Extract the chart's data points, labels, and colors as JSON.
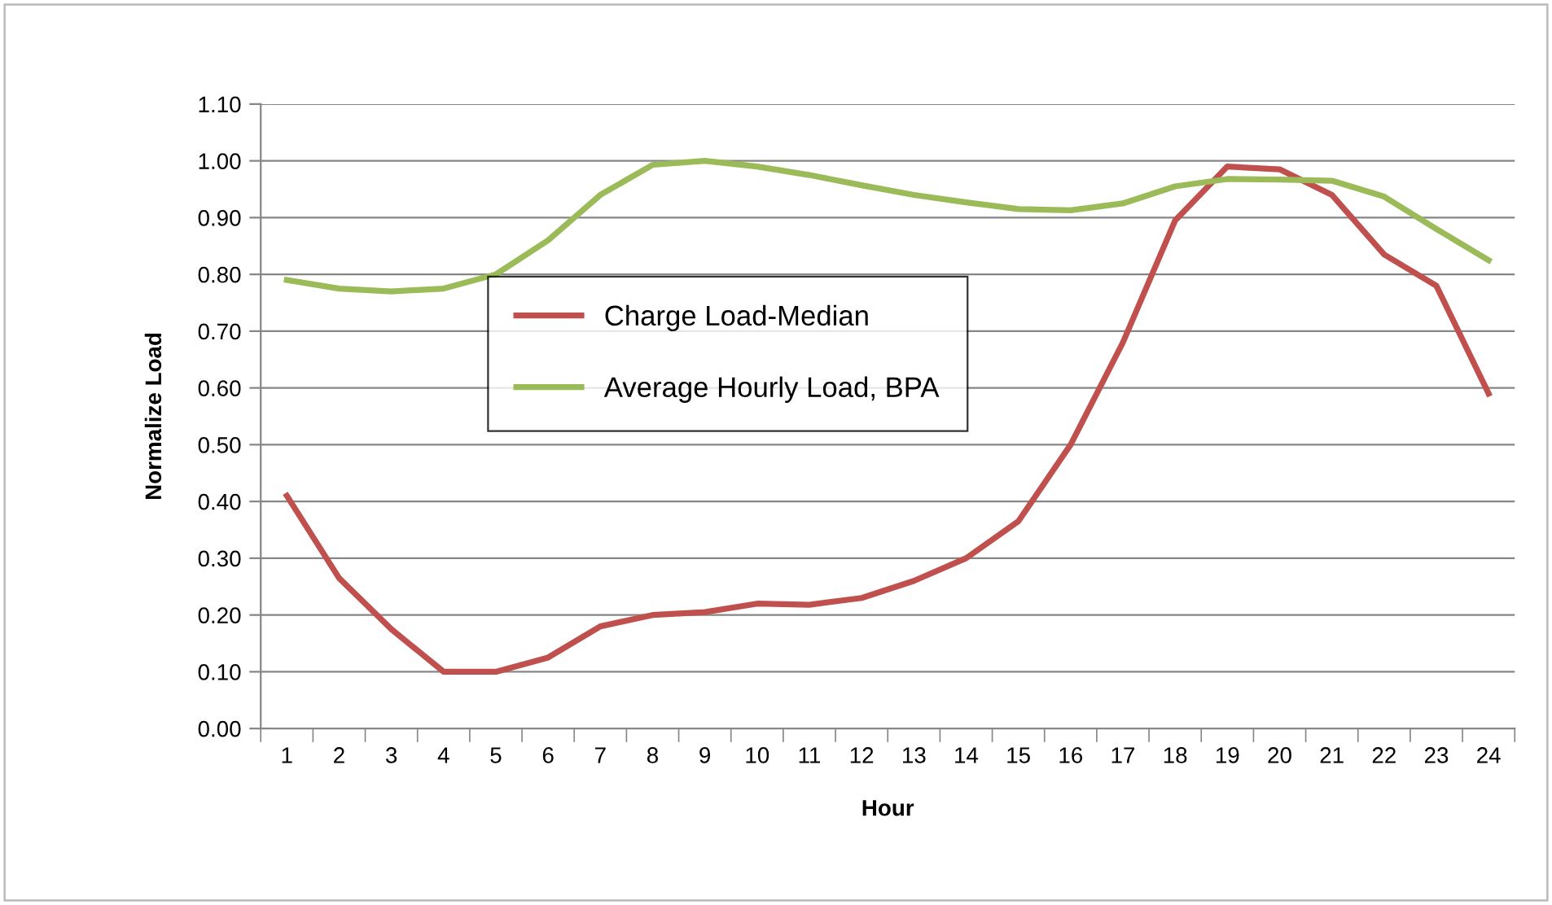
{
  "chart_data": {
    "type": "line",
    "xlabel": "Hour",
    "ylabel": "Normalize Load",
    "categories": [
      "1",
      "2",
      "3",
      "4",
      "5",
      "6",
      "7",
      "8",
      "9",
      "10",
      "11",
      "12",
      "13",
      "14",
      "15",
      "16",
      "17",
      "18",
      "19",
      "20",
      "21",
      "22",
      "23",
      "24"
    ],
    "series": [
      {
        "name": "Charge Load-Median",
        "color": "#c0504d",
        "values": [
          0.41,
          0.265,
          0.175,
          0.1,
          0.1,
          0.125,
          0.18,
          0.2,
          0.205,
          0.22,
          0.218,
          0.23,
          0.26,
          0.3,
          0.365,
          0.5,
          0.68,
          0.895,
          0.99,
          0.985,
          0.94,
          0.835,
          0.78,
          0.59
        ]
      },
      {
        "name": "Average Hourly Load, BPA",
        "color": "#9bbb59",
        "values": [
          0.79,
          0.775,
          0.77,
          0.775,
          0.8,
          0.86,
          0.94,
          0.993,
          1.0,
          0.99,
          0.975,
          0.957,
          0.94,
          0.927,
          0.915,
          0.913,
          0.925,
          0.955,
          0.968,
          0.967,
          0.965,
          0.937,
          0.88,
          0.825
        ]
      }
    ],
    "ylim": [
      0,
      1.1
    ],
    "yticks": [
      {
        "value": 0,
        "label": "0.00"
      },
      {
        "value": 0.1,
        "label": "0.10"
      },
      {
        "value": 0.2,
        "label": "0.20"
      },
      {
        "value": 0.3,
        "label": "0.30"
      },
      {
        "value": 0.4,
        "label": "0.40"
      },
      {
        "value": 0.5,
        "label": "0.50"
      },
      {
        "value": 0.6,
        "label": "0.60"
      },
      {
        "value": 0.7,
        "label": "0.70"
      },
      {
        "value": 0.8,
        "label": "0.80"
      },
      {
        "value": 0.9,
        "label": "0.90"
      },
      {
        "value": 1.0,
        "label": "1.00"
      },
      {
        "value": 1.1,
        "label": "1.10"
      }
    ],
    "grid": "y",
    "legend": "center left",
    "marker": "none",
    "line_style": "solid"
  }
}
